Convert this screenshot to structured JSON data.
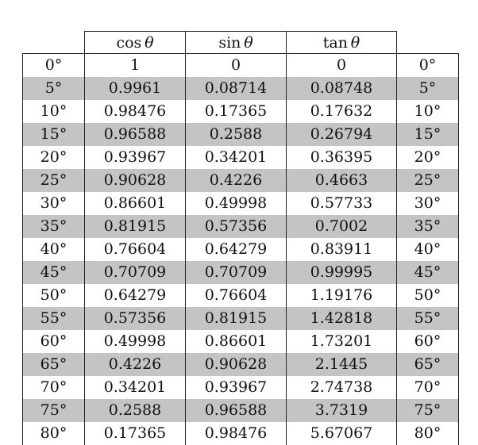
{
  "headers": {
    "angle_left": "",
    "cos": {
      "fn": "cos",
      "var": "θ"
    },
    "sin": {
      "fn": "sin",
      "var": "θ"
    },
    "tan": {
      "fn": "tan",
      "var": "θ"
    },
    "angle_right": ""
  },
  "rows": [
    {
      "angle": "0°",
      "cos": "1",
      "sin": "0",
      "tan": "0",
      "angle2": "0°",
      "shaded": false
    },
    {
      "angle": "5°",
      "cos": "0.9961",
      "sin": "0.08714",
      "tan": "0.08748",
      "angle2": "5°",
      "shaded": true
    },
    {
      "angle": "10°",
      "cos": "0.98476",
      "sin": "0.17365",
      "tan": "0.17632",
      "angle2": "10°",
      "shaded": false
    },
    {
      "angle": "15°",
      "cos": "0.96588",
      "sin": "0.2588",
      "tan": "0.26794",
      "angle2": "15°",
      "shaded": true
    },
    {
      "angle": "20°",
      "cos": "0.93967",
      "sin": "0.34201",
      "tan": "0.36395",
      "angle2": "20°",
      "shaded": false
    },
    {
      "angle": "25°",
      "cos": "0.90628",
      "sin": "0.4226",
      "tan": "0.4663",
      "angle2": "25°",
      "shaded": true
    },
    {
      "angle": "30°",
      "cos": "0.86601",
      "sin": "0.49998",
      "tan": "0.57733",
      "angle2": "30°",
      "shaded": false
    },
    {
      "angle": "35°",
      "cos": "0.81915",
      "sin": "0.57356",
      "tan": "0.7002",
      "angle2": "35°",
      "shaded": true
    },
    {
      "angle": "40°",
      "cos": "0.76604",
      "sin": "0.64279",
      "tan": "0.83911",
      "angle2": "40°",
      "shaded": false
    },
    {
      "angle": "45°",
      "cos": "0.70709",
      "sin": "0.70709",
      "tan": "0.99995",
      "angle2": "45°",
      "shaded": true
    },
    {
      "angle": "50°",
      "cos": "0.64279",
      "sin": "0.76604",
      "tan": "1.19176",
      "angle2": "50°",
      "shaded": false
    },
    {
      "angle": "55°",
      "cos": "0.57356",
      "sin": "0.81915",
      "tan": "1.42818",
      "angle2": "55°",
      "shaded": true
    },
    {
      "angle": "60°",
      "cos": "0.49998",
      "sin": "0.86601",
      "tan": "1.73201",
      "angle2": "60°",
      "shaded": false
    },
    {
      "angle": "65°",
      "cos": "0.4226",
      "sin": "0.90628",
      "tan": "2.1445",
      "angle2": "65°",
      "shaded": true
    },
    {
      "angle": "70°",
      "cos": "0.34201",
      "sin": "0.93967",
      "tan": "2.74738",
      "angle2": "70°",
      "shaded": false
    },
    {
      "angle": "75°",
      "cos": "0.2588",
      "sin": "0.96588",
      "tan": "3.7319",
      "angle2": "75°",
      "shaded": true
    },
    {
      "angle": "80°",
      "cos": "0.17365",
      "sin": "0.98476",
      "tan": "5.67067",
      "angle2": "80°",
      "shaded": false
    }
  ],
  "colors": {
    "shade": "#c4c4c4",
    "rule": "#222222",
    "text": "#111111"
  }
}
